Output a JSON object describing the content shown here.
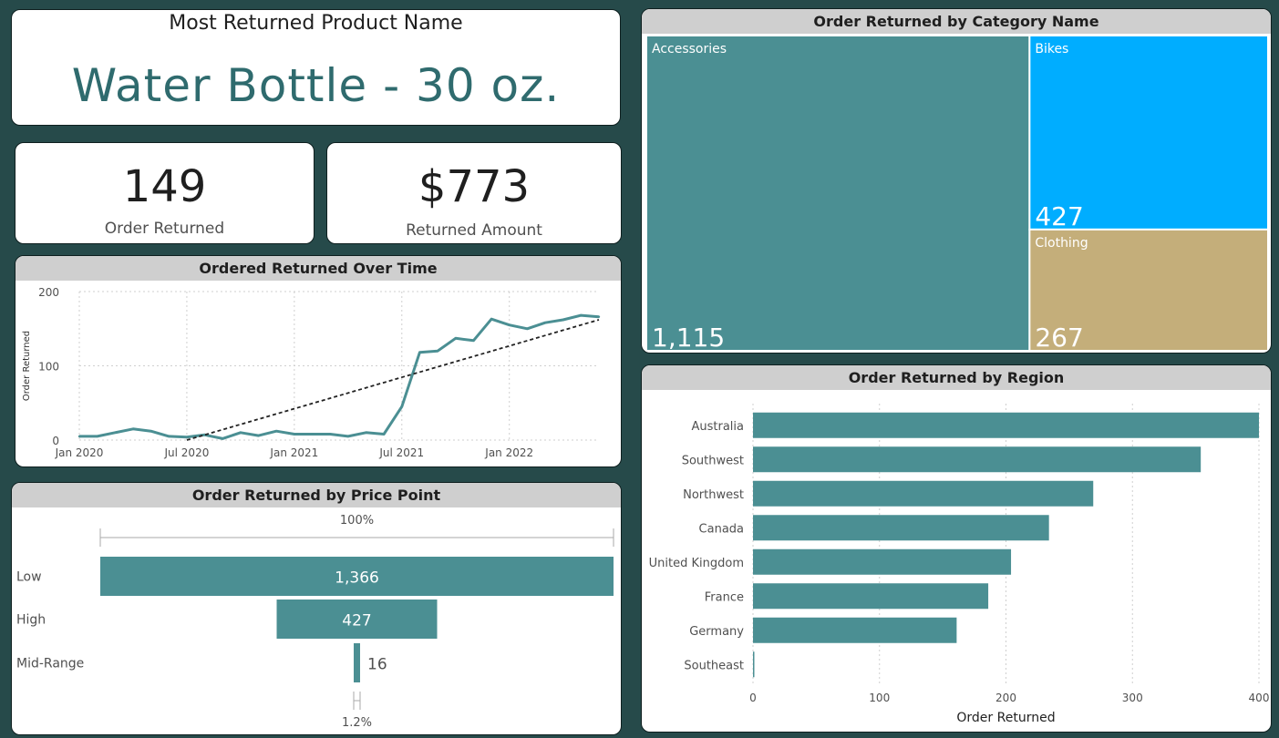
{
  "product_card": {
    "title": "Most Returned Product Name",
    "value": "Water Bottle - 30 oz."
  },
  "kpi_orders": {
    "value": "149",
    "label": "Order Returned"
  },
  "kpi_amount": {
    "value": "$773",
    "label": "Returned Amount"
  },
  "colors": {
    "teal": "#4b8f93",
    "bikes": "#00adff",
    "clothing": "#c4ae7a",
    "background": "#264a4a",
    "header": "#cfcfcf"
  },
  "chart_data": [
    {
      "id": "over_time",
      "type": "line",
      "title": "Ordered Returned Over Time",
      "ylabel": "Order Returned",
      "xlabel": "",
      "ylim": [
        0,
        200
      ],
      "yticks": [
        0,
        100,
        200
      ],
      "xticks": [
        "Jan 2020",
        "Jul 2020",
        "Jan 2021",
        "Jul 2021",
        "Jan 2022"
      ],
      "x": [
        "2020-01",
        "2020-02",
        "2020-03",
        "2020-04",
        "2020-05",
        "2020-06",
        "2020-07",
        "2020-08",
        "2020-09",
        "2020-10",
        "2020-11",
        "2020-12",
        "2021-01",
        "2021-02",
        "2021-03",
        "2021-04",
        "2021-05",
        "2021-06",
        "2021-07",
        "2021-08",
        "2021-09",
        "2021-10",
        "2021-11",
        "2021-12",
        "2022-01",
        "2022-02",
        "2022-03",
        "2022-04",
        "2022-05",
        "2022-06"
      ],
      "series": [
        {
          "values": [
            5,
            5,
            10,
            15,
            12,
            5,
            4,
            7,
            2,
            10,
            6,
            12,
            8,
            8,
            8,
            5,
            10,
            8,
            45,
            118,
            120,
            137,
            134,
            163,
            155,
            150,
            158,
            162,
            168,
            166
          ]
        }
      ],
      "trendline": {
        "from": [
          "2020-07",
          0
        ],
        "to": [
          "2022-06",
          162
        ]
      },
      "grid": true
    },
    {
      "id": "category",
      "type": "treemap",
      "title": "Order Returned by Category Name",
      "categories": [
        "Accessories",
        "Bikes",
        "Clothing"
      ],
      "values": [
        1115,
        427,
        267
      ],
      "labels": [
        "1,115",
        "427",
        "267"
      ]
    },
    {
      "id": "price_point",
      "type": "funnel",
      "title": "Order Returned by Price Point",
      "categories": [
        "Low",
        "High",
        "Mid-Range"
      ],
      "values": [
        1366,
        427,
        16
      ],
      "labels": [
        "1,366",
        "427",
        "16"
      ],
      "top_percent": "100%",
      "bottom_percent": "1.2%"
    },
    {
      "id": "region",
      "type": "bar",
      "title": "Order Returned by Region",
      "categories": [
        "Australia",
        "Southwest",
        "Northwest",
        "Canada",
        "United Kingdom",
        "France",
        "Germany",
        "Southeast"
      ],
      "values": [
        400,
        354,
        269,
        234,
        204,
        186,
        161,
        1
      ],
      "xlim": [
        0,
        400
      ],
      "xticks": [
        0,
        100,
        200,
        300,
        400
      ],
      "xlabel": "Order Returned",
      "grid": true
    }
  ]
}
